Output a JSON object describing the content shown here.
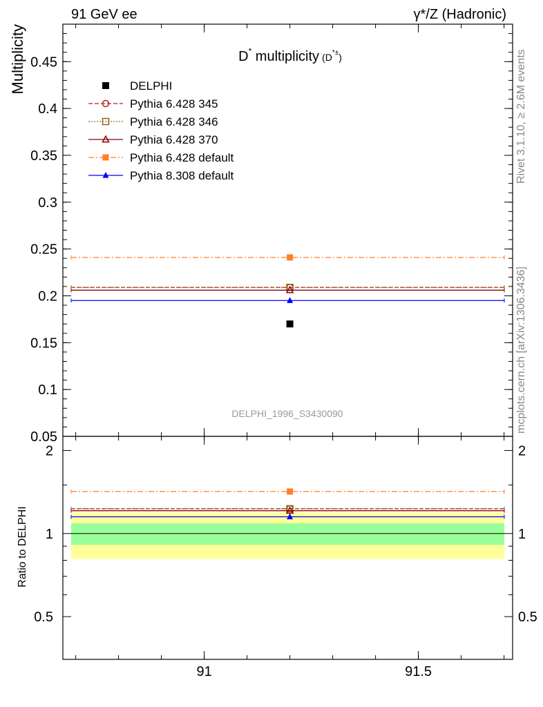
{
  "header": {
    "left": "91 GeV ee",
    "right": "γ*/Z (Hadronic)"
  },
  "side_labels": {
    "rivet": "Rivet 3.1.10, ≥ 2.6M events",
    "mcplots": "mcplots.cern.ch [arXiv:1306.3436]"
  },
  "analysis_id": "DELPHI_1996_S3430090",
  "colors": {
    "data": "#000000",
    "p345": "#b22222",
    "p346": "#8b6914",
    "p370": "#8b0000",
    "p6def": "#ff7f27",
    "p8def": "#0000ff",
    "band_inner": "#99ff99",
    "band_outer": "#ffff99"
  },
  "chart_data": [
    {
      "type": "scatter",
      "panel": "main",
      "title_main": "D",
      "title_sup": "*",
      "title_rest": " multiplicity",
      "title_small": "(D",
      "title_small_sup": "*±",
      "title_small_end": ")",
      "ylabel": "Multiplicity",
      "xlim": [
        90.67,
        91.72
      ],
      "ylim": [
        0.05,
        0.49
      ],
      "yticks": [
        0.05,
        0.1,
        0.15,
        0.2,
        0.25,
        0.3,
        0.35,
        0.4,
        0.45
      ],
      "ytick_labels": [
        "0.05",
        "0.1",
        "0.15",
        "0.2",
        "0.25",
        "0.3",
        "0.35",
        "0.4",
        "0.45"
      ],
      "legend_position": "top-left",
      "x_range": [
        90.67,
        91.72
      ],
      "x_point": 91.2,
      "series": [
        {
          "name": "DELPHI",
          "key": "data",
          "value": 0.17,
          "marker": "square-filled",
          "line": "none"
        },
        {
          "name": "Pythia 6.428 345",
          "key": "p345",
          "value": 0.209,
          "marker": "circle-open",
          "line": "dashed"
        },
        {
          "name": "Pythia 6.428 346",
          "key": "p346",
          "value": 0.209,
          "marker": "square-open",
          "line": "dotted"
        },
        {
          "name": "Pythia 6.428 370",
          "key": "p370",
          "value": 0.206,
          "marker": "triangle-open",
          "line": "solid"
        },
        {
          "name": "Pythia 6.428 default",
          "key": "p6def",
          "value": 0.241,
          "marker": "square-filled",
          "line": "dashdot"
        },
        {
          "name": "Pythia 8.308 default",
          "key": "p8def",
          "value": 0.195,
          "marker": "triangle-filled",
          "line": "solid"
        }
      ]
    },
    {
      "type": "scatter",
      "panel": "ratio",
      "ylabel": "Ratio to DELPHI",
      "ylim": [
        0.35,
        2.25
      ],
      "yticks": [
        0.5,
        1,
        2
      ],
      "ytick_labels": [
        "0.5",
        "1",
        "2"
      ],
      "xticks": [
        91,
        91.5
      ],
      "xtick_labels": [
        "91",
        "91.5"
      ],
      "band_inner": [
        0.91,
        1.09
      ],
      "band_outer": [
        0.81,
        1.19
      ],
      "series": [
        {
          "name": "Pythia 6.428 345",
          "key": "p345",
          "value": 1.23
        },
        {
          "name": "Pythia 6.428 346",
          "key": "p346",
          "value": 1.23
        },
        {
          "name": "Pythia 6.428 370",
          "key": "p370",
          "value": 1.21
        },
        {
          "name": "Pythia 6.428 default",
          "key": "p6def",
          "value": 1.42
        },
        {
          "name": "Pythia 8.308 default",
          "key": "p8def",
          "value": 1.15
        }
      ]
    }
  ]
}
